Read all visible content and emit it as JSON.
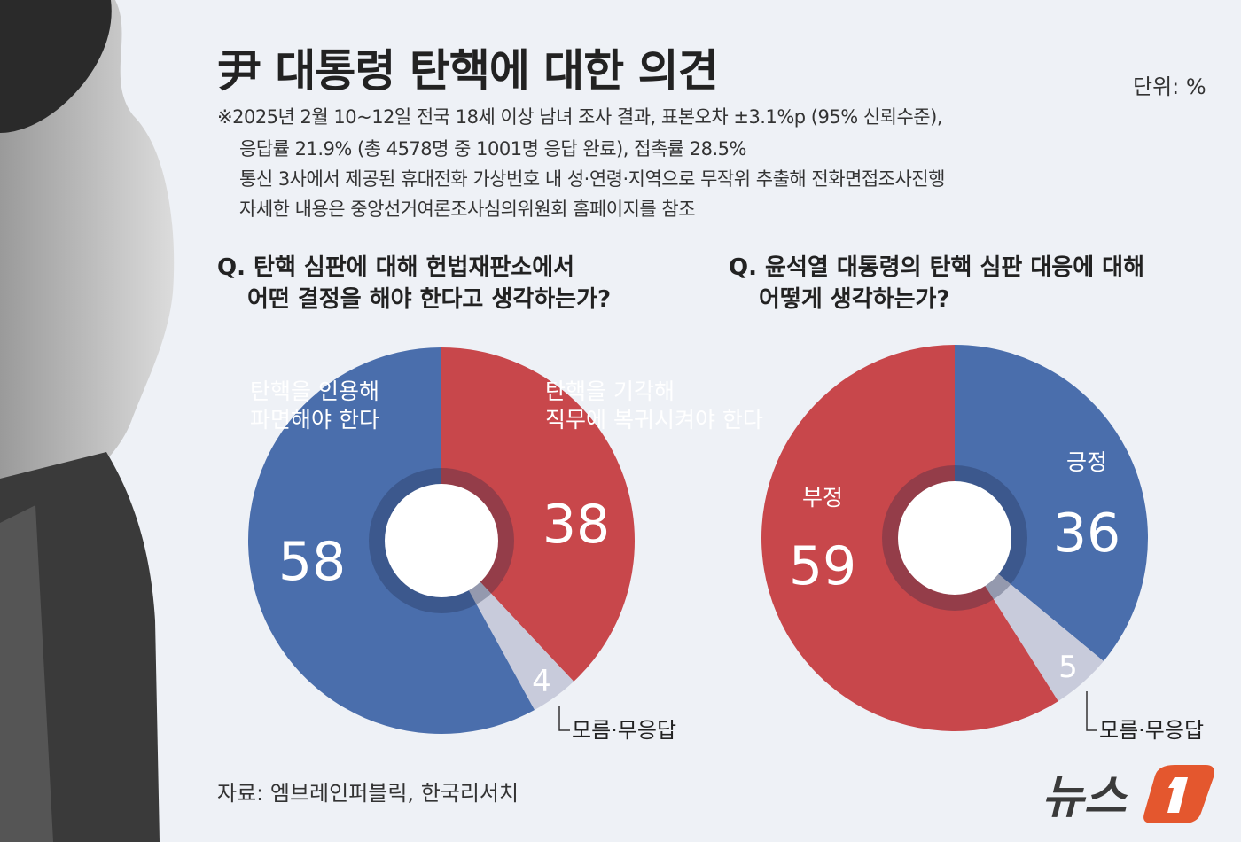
{
  "header": {
    "title": "尹 대통령 탄핵에 대한 의견",
    "unit": "단위: %",
    "notes": [
      "※2025년 2월 10~12일 전국 18세 이상 남녀 조사 결과, 표본오차 ±3.1%p (95% 신뢰수준),",
      "응답률 21.9% (총 4578명 중 1001명 응답 완료), 접촉률 28.5%",
      "통신 3사에서 제공된 휴대전화 가상번호 내 성·연령·지역으로 무작위 추출해 전화면접조사진행",
      "자세한 내용은 중앙선거여론조사심의위원회 홈페이지를 참조"
    ]
  },
  "colors": {
    "blue": "#4a6eac",
    "red": "#c8474b",
    "gray": "#c8cbdb",
    "background": "#eef1f6",
    "logo_orange": "#e4572e"
  },
  "chart_data": [
    {
      "type": "pie",
      "donut": true,
      "title": "Q. 탄핵 심판에 대해 헌법재판소에서 어떤 결정을 해야 한다고 생각하는가?",
      "title_lines": [
        "Q. 탄핵 심판에 대해 헌법재판소에서",
        "어떤 결정을 해야 한다고 생각하는가?"
      ],
      "slices": [
        {
          "label_lines": [
            "탄핵을 기각해",
            "직무에 복귀시켜야 한다"
          ],
          "value": 38,
          "color": "#c8474b"
        },
        {
          "label_lines": [
            "모름·무응답"
          ],
          "value": 4,
          "color": "#c8cbdb"
        },
        {
          "label_lines": [
            "탄핵을 인용해",
            "파면해야 한다"
          ],
          "value": 58,
          "color": "#4a6eac"
        }
      ]
    },
    {
      "type": "pie",
      "donut": true,
      "title": "Q. 윤석열 대통령의 탄핵 심판 대응에 대해 어떻게 생각하는가?",
      "title_lines": [
        "Q. 윤석열 대통령의 탄핵 심판 대응에 대해",
        "어떻게 생각하는가?"
      ],
      "slices": [
        {
          "label_lines": [
            "긍정"
          ],
          "value": 36,
          "color": "#4a6eac"
        },
        {
          "label_lines": [
            "모름·무응답"
          ],
          "value": 5,
          "color": "#c8cbdb"
        },
        {
          "label_lines": [
            "부정"
          ],
          "value": 59,
          "color": "#c8474b"
        }
      ]
    }
  ],
  "footer": {
    "source": "자료: 엠브레인퍼블릭, 한국리서치",
    "logo_text": "뉴스1"
  }
}
